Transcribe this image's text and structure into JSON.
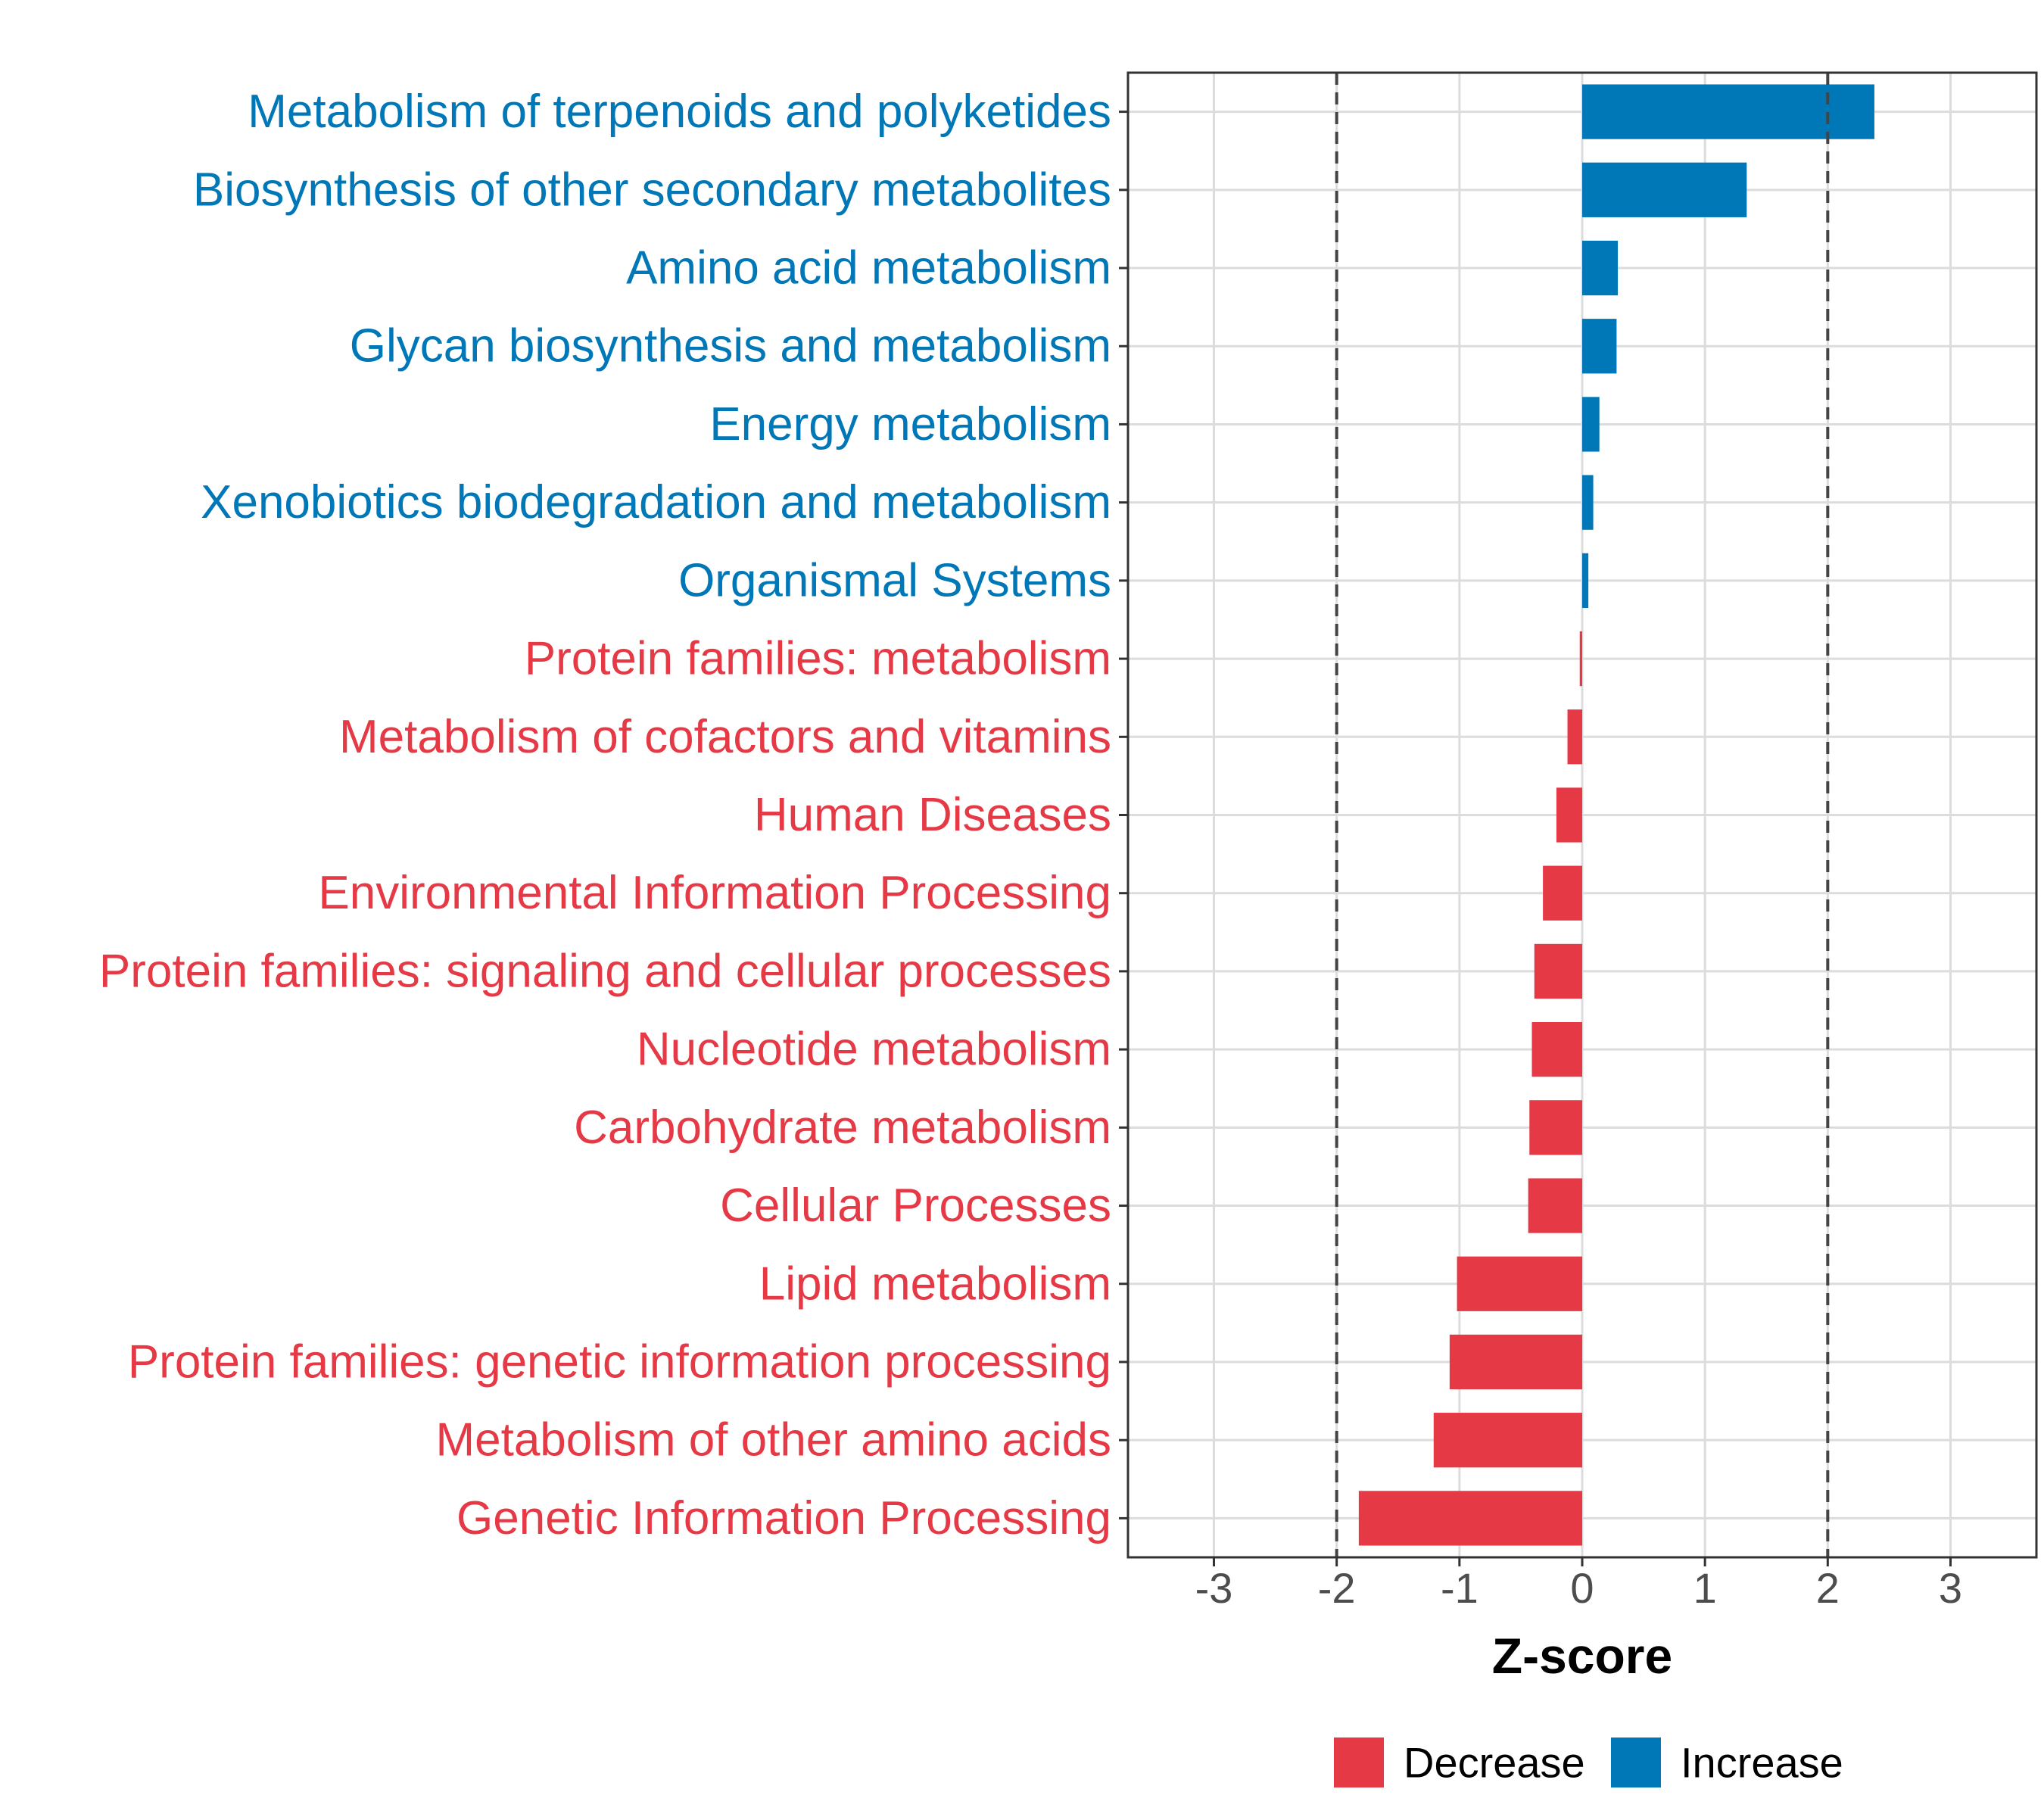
{
  "chart_data": {
    "type": "bar",
    "orientation": "horizontal",
    "xlabel": "Z-score",
    "xlim": [
      -3.7,
      3.7
    ],
    "x_ticks": [
      -3,
      -2,
      -1,
      0,
      1,
      2,
      3
    ],
    "x_tick_labels": [
      "-3",
      "-2",
      "-1",
      "0",
      "1",
      "2",
      "3"
    ],
    "reference_lines": [
      -2,
      2
    ],
    "grid": true,
    "legend_position": "bottom",
    "colors": {
      "Decrease": "#e63946",
      "Increase": "#0077b6"
    },
    "legend": [
      {
        "name": "Decrease",
        "color": "#e63946"
      },
      {
        "name": "Increase",
        "color": "#0077b6"
      }
    ],
    "categories": [
      "Metabolism of terpenoids and polyketides",
      "Biosynthesis of other secondary metabolites",
      "Amino acid metabolism",
      "Glycan biosynthesis and metabolism",
      "Energy metabolism",
      "Xenobiotics biodegradation and metabolism",
      "Organismal Systems",
      "Protein families: metabolism",
      "Metabolism of cofactors and vitamins",
      "Human Diseases",
      "Environmental Information Processing",
      "Protein families: signaling and cellular processes",
      "Nucleotide metabolism",
      "Carbohydrate metabolism",
      "Cellular Processes",
      "Lipid metabolism",
      "Protein families: genetic information processing",
      "Metabolism of other amino acids",
      "Genetic Information Processing"
    ],
    "values": [
      2.38,
      1.34,
      0.29,
      0.28,
      0.14,
      0.09,
      0.05,
      -0.02,
      -0.12,
      -0.21,
      -0.32,
      -0.39,
      -0.41,
      -0.43,
      -0.44,
      -1.02,
      -1.08,
      -1.21,
      -1.82
    ],
    "groups": [
      "Increase",
      "Increase",
      "Increase",
      "Increase",
      "Increase",
      "Increase",
      "Increase",
      "Decrease",
      "Decrease",
      "Decrease",
      "Decrease",
      "Decrease",
      "Decrease",
      "Decrease",
      "Decrease",
      "Decrease",
      "Decrease",
      "Decrease",
      "Decrease"
    ]
  }
}
